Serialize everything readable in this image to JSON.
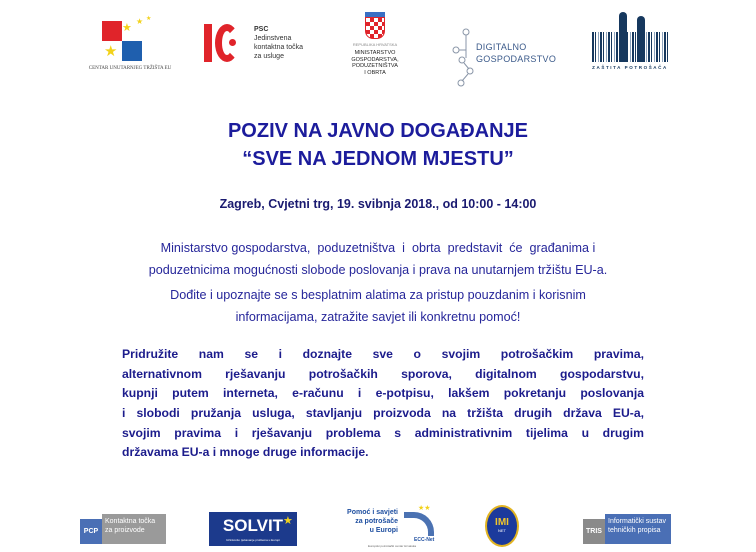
{
  "logos_top": {
    "centar": {
      "caption": "CENTAR UNUTARNJEG TRŽIŠTA EU"
    },
    "psc": {
      "abbr": "PSC",
      "line1": "Jedinstvena",
      "line2": "kontaktna točka",
      "line3": "za usluge"
    },
    "ministry": {
      "republic": "REPUBLIKA HRVATSKA",
      "line1": "MINISTARSTVO",
      "line2": "GOSPODARSTVA,",
      "line3": "PODUZETNIŠTVA",
      "line4": "I OBRTA"
    },
    "digital": {
      "line1": "DIGITALNO",
      "line2": "GOSPODARSTVO"
    },
    "consumer": {
      "caption": "ZAŠTITA POTROŠAČA"
    }
  },
  "heading": {
    "line1": "POZIV NA JAVNO DOGAĐANJE",
    "line2": "“SVE NA JEDNOM MJESTU”"
  },
  "event": "Zagreb, Cvjetni trg, 19. svibnja 2018., od 10:00 - 14:00",
  "intro": {
    "p1_line1": "Ministarstvo gospodarstva,  poduzetništva  i  obrta  predstavit  će  građanima i",
    "p1_line2": "poduzetnicima mogućnosti slobode poslovanja i prava na unutarnjem tržištu EU-a.",
    "p2_line1": "Dođite i upoznajte se s besplatnim alatima za pristup pouzdanim i korisnim",
    "p2_line2": "informacijama, zatražite savjet ili konkretnu pomoć!"
  },
  "highlight_lines": [
    "Pridružite nam se i doznajte sve o svojim potrošačkim pravima,",
    "alternativnom rješavanju potrošačkih sporova, digitalnom gospodarstvu,",
    "kupnji putem interneta, e-računu i e-potpisu, lakšem pokretanju poslovanja",
    "i slobodi pružanja usluga, stavljanju proizvoda na tržišta drugih država EU-a,",
    "svojim pravima i rješavanju problema s administrativnim tijelima u  drugim",
    "državama EU-a i mnoge druge informacije."
  ],
  "logos_bottom": {
    "pcp": {
      "abbr": "PCP",
      "line1": "Kontaktna točka",
      "line2": "za proizvode"
    },
    "solvit": {
      "name": "SOLVIT",
      "sub": "Učinkovito rješavanje problema u Europi"
    },
    "ecc": {
      "line1": "Pomoć i savjeti",
      "line2": "za potrošače",
      "line3": "u Europi",
      "brand": "ECC-Net",
      "sub": "Europski potrošački centar Hrvatska"
    },
    "imi": {
      "name": "IMI",
      "sub": "NET"
    },
    "tris": {
      "abbr": "TRIS",
      "line1": "Informatički sustav",
      "line2": "tehničkih propisa"
    }
  },
  "colors": {
    "title": "#1c1c9c",
    "body": "#26269a",
    "red": "#e0242a",
    "blue": "#1f5fae",
    "navy": "#16385e"
  }
}
